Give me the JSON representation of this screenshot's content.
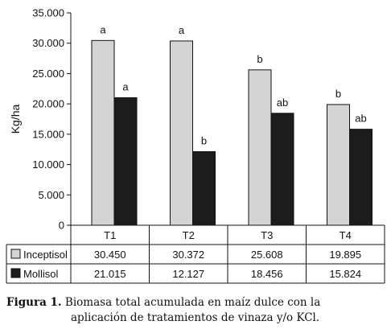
{
  "chart_data": {
    "type": "bar",
    "ylabel": "Kg/ha",
    "ylim": [
      0,
      35000
    ],
    "yticks": [
      0,
      5000,
      10000,
      15000,
      20000,
      25000,
      30000,
      35000
    ],
    "ytick_labels": [
      "0",
      "5.000",
      "10.000",
      "15.000",
      "20.000",
      "25.000",
      "30.000",
      "35.000"
    ],
    "categories": [
      "T1",
      "T2",
      "T3",
      "T4"
    ],
    "series": [
      {
        "name": "Inceptisol",
        "color": "#d4d4d4",
        "values": [
          30450,
          30372,
          25608,
          19895
        ],
        "value_labels": [
          "30.450",
          "30.372",
          "25.608",
          "19.895"
        ],
        "letters": [
          "a",
          "a",
          "b",
          "b"
        ]
      },
      {
        "name": "Mollisol",
        "color": "#1c1c1c",
        "values": [
          21015,
          12127,
          18456,
          15824
        ],
        "value_labels": [
          "21.015",
          "12.127",
          "18.456",
          "15.824"
        ],
        "letters": [
          "a",
          "b",
          "ab",
          "ab"
        ]
      }
    ],
    "grid": false,
    "legend": "data-table"
  },
  "caption": {
    "label": "Figura 1.",
    "line1": "Biomasa total acumulada en maíz dulce con la",
    "line2": "aplicación de tratamientos de vinaza y/o KCl."
  }
}
